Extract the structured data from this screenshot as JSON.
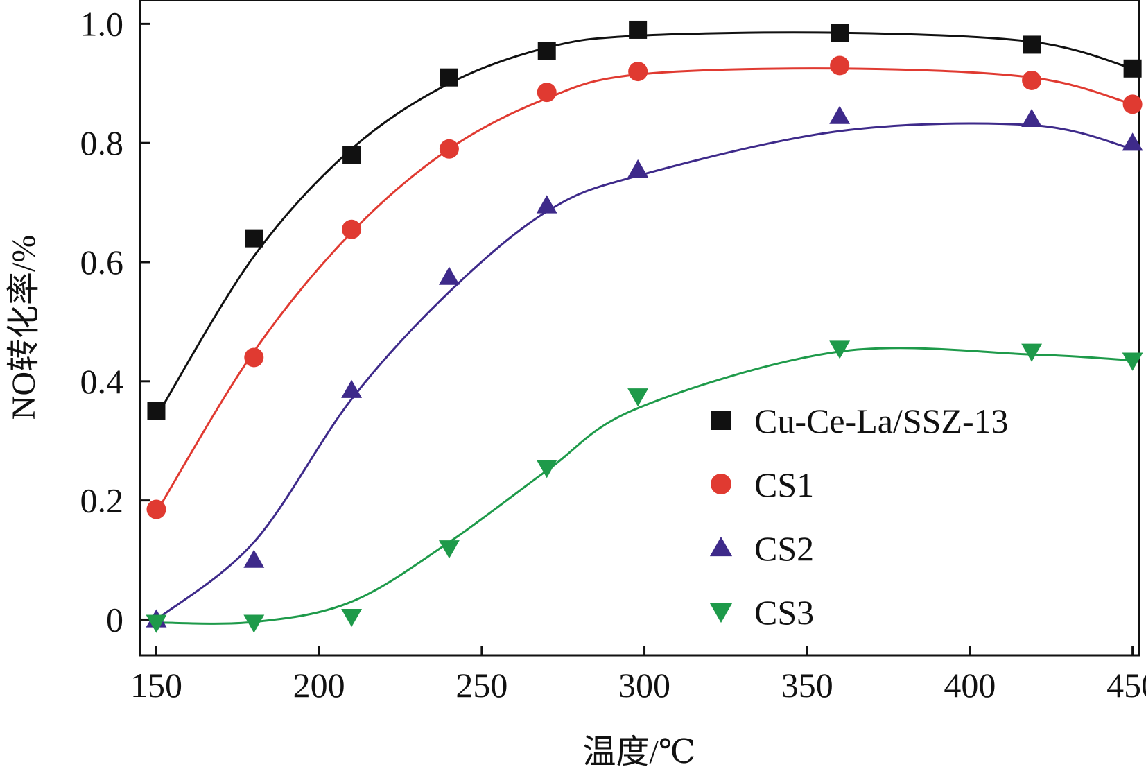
{
  "chart_data": {
    "type": "line",
    "title": "",
    "xlabel": "温度/℃",
    "ylabel": "NO转化率/%",
    "xlim": [
      145,
      452
    ],
    "ylim": [
      -0.06,
      1.04
    ],
    "xticks": [
      150,
      200,
      250,
      300,
      350,
      400,
      450
    ],
    "yticks": [
      0,
      0.2,
      0.4,
      0.6,
      0.8,
      1.0
    ],
    "ytick_labels": [
      "0",
      "0.2",
      "0.4",
      "0.6",
      "0.8",
      "1.0"
    ],
    "legend_position": "bottom-right",
    "grid": false,
    "x": [
      150,
      180,
      210,
      240,
      270,
      298,
      360,
      419,
      450
    ],
    "series": [
      {
        "name": "Cu-Ce-La/SSZ-13",
        "marker": "square",
        "color": "#111111",
        "values": [
          0.35,
          0.64,
          0.78,
          0.91,
          0.955,
          0.99,
          0.985,
          0.965,
          0.925
        ],
        "fit": [
          0.34,
          0.61,
          0.79,
          0.9,
          0.96,
          0.98,
          0.985,
          0.97,
          0.925
        ]
      },
      {
        "name": "CS1",
        "marker": "circle",
        "color": "#e03a31",
        "values": [
          0.185,
          0.44,
          0.655,
          0.79,
          0.885,
          0.92,
          0.93,
          0.905,
          0.865
        ],
        "fit": [
          0.18,
          0.45,
          0.65,
          0.79,
          0.875,
          0.915,
          0.925,
          0.91,
          0.865
        ]
      },
      {
        "name": "CS2",
        "marker": "triangle-up",
        "color": "#3e2a8a",
        "values": [
          0.0,
          0.1,
          0.385,
          0.575,
          0.695,
          0.755,
          0.845,
          0.84,
          0.8
        ],
        "fit": [
          0.0,
          0.13,
          0.37,
          0.55,
          0.685,
          0.745,
          0.82,
          0.83,
          0.79
        ]
      },
      {
        "name": "CS3",
        "marker": "triangle-down",
        "color": "#1e9a4a",
        "values": [
          -0.005,
          -0.005,
          0.005,
          0.12,
          0.255,
          0.375,
          0.455,
          0.45,
          0.435
        ],
        "fit": [
          -0.005,
          -0.004,
          0.03,
          0.13,
          0.25,
          0.355,
          0.45,
          0.445,
          0.435
        ]
      }
    ]
  }
}
